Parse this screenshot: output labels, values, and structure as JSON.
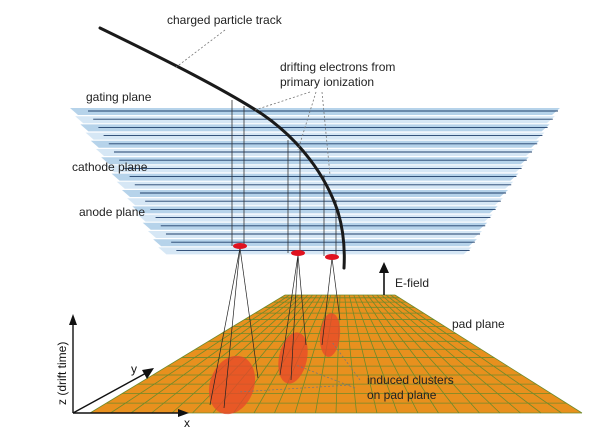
{
  "labels": {
    "track": "charged particle track",
    "drifting_line1": "drifting electrons from",
    "drifting_line2": "primary ionization",
    "gating_plane": "gating plane",
    "cathode_plane": "cathode plane",
    "anode_plane": "anode plane",
    "efield": "E-field",
    "pad_plane": "pad plane",
    "clusters_line1": "induced clusters",
    "clusters_line2": "on pad plane",
    "axis_z": "z (drift time)",
    "axis_y": "y",
    "axis_x": "x"
  },
  "colors": {
    "plane_light": "#cfe3f3",
    "plane_mid": "#a9cbe6",
    "plane_line": "#1f3f6a",
    "pad_fill": "#e8901e",
    "pad_grid": "#7a8a2a",
    "cluster": "#e8452a",
    "track": "#1a1a1a",
    "electron_hit": "#e0121f"
  }
}
